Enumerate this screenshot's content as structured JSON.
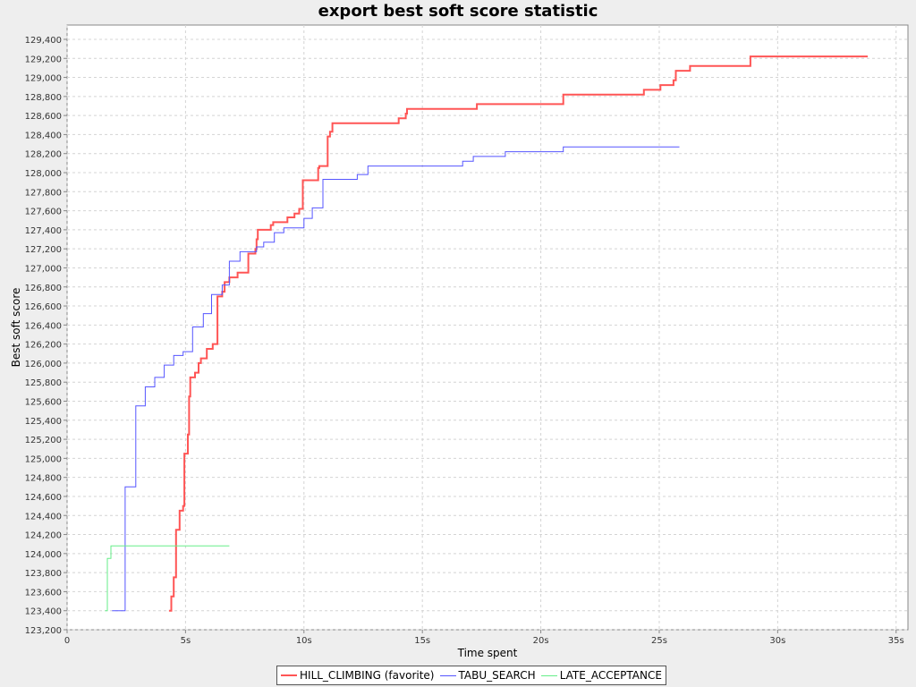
{
  "chart_data": {
    "type": "line",
    "title": "export best soft score statistic",
    "xlabel": "Time spent",
    "ylabel": "Best soft score",
    "xlim": [
      0,
      35.5
    ],
    "ylim": [
      123200,
      129550
    ],
    "x_ticks": [
      0,
      5,
      10,
      15,
      20,
      25,
      30,
      35
    ],
    "x_tick_labels": [
      "0",
      "5s",
      "10s",
      "15s",
      "20s",
      "25s",
      "30s",
      "35s"
    ],
    "y_ticks": [
      123200,
      123400,
      123600,
      123800,
      124000,
      124200,
      124400,
      124600,
      124800,
      125000,
      125200,
      125400,
      125600,
      125800,
      126000,
      126200,
      126400,
      126600,
      126800,
      127000,
      127200,
      127400,
      127600,
      127800,
      128000,
      128200,
      128400,
      128600,
      128800,
      129000,
      129200,
      129400
    ],
    "y_tick_labels": [
      "123,200",
      "123,400",
      "123,600",
      "123,800",
      "124,000",
      "124,200",
      "124,400",
      "124,600",
      "124,800",
      "125,000",
      "125,200",
      "125,400",
      "125,600",
      "125,800",
      "126,000",
      "126,200",
      "126,400",
      "126,600",
      "126,800",
      "127,000",
      "127,200",
      "127,400",
      "127,600",
      "127,800",
      "128,000",
      "128,200",
      "128,400",
      "128,600",
      "128,800",
      "129,000",
      "129,200",
      "129,400"
    ],
    "grid": true,
    "legend_position": "bottom",
    "series": [
      {
        "name": "HILL_CLIMBING (favorite)",
        "color": "#ff5555",
        "width": 2,
        "step": true,
        "points": [
          [
            4.3,
            123400
          ],
          [
            4.4,
            123550
          ],
          [
            4.5,
            123750
          ],
          [
            4.6,
            124250
          ],
          [
            4.75,
            124450
          ],
          [
            4.9,
            124500
          ],
          [
            4.95,
            125050
          ],
          [
            5.1,
            125250
          ],
          [
            5.15,
            125650
          ],
          [
            5.2,
            125850
          ],
          [
            5.4,
            125900
          ],
          [
            5.55,
            126000
          ],
          [
            5.65,
            126050
          ],
          [
            5.9,
            126150
          ],
          [
            6.15,
            126200
          ],
          [
            6.35,
            126700
          ],
          [
            6.55,
            126750
          ],
          [
            6.65,
            126850
          ],
          [
            6.85,
            126900
          ],
          [
            7.2,
            126950
          ],
          [
            7.65,
            127150
          ],
          [
            7.95,
            127200
          ],
          [
            8.0,
            127300
          ],
          [
            8.05,
            127400
          ],
          [
            8.6,
            127450
          ],
          [
            8.7,
            127480
          ],
          [
            9.3,
            127530
          ],
          [
            9.6,
            127570
          ],
          [
            9.8,
            127620
          ],
          [
            9.95,
            127920
          ],
          [
            10.6,
            128050
          ],
          [
            10.65,
            128070
          ],
          [
            11.0,
            128380
          ],
          [
            11.1,
            128430
          ],
          [
            11.2,
            128520
          ],
          [
            14.0,
            128570
          ],
          [
            14.3,
            128620
          ],
          [
            14.35,
            128670
          ],
          [
            17.3,
            128720
          ],
          [
            20.95,
            128820
          ],
          [
            24.35,
            128870
          ],
          [
            25.05,
            128920
          ],
          [
            25.6,
            128970
          ],
          [
            25.7,
            129070
          ],
          [
            26.3,
            129120
          ],
          [
            28.85,
            129220
          ],
          [
            33.8,
            129220
          ]
        ]
      },
      {
        "name": "TABU_SEARCH",
        "color": "#5555ff",
        "width": 1,
        "step": true,
        "points": [
          [
            1.9,
            123400
          ],
          [
            2.45,
            124700
          ],
          [
            2.9,
            125550
          ],
          [
            3.3,
            125750
          ],
          [
            3.7,
            125850
          ],
          [
            4.1,
            125980
          ],
          [
            4.5,
            126080
          ],
          [
            4.9,
            126120
          ],
          [
            5.3,
            126380
          ],
          [
            5.75,
            126520
          ],
          [
            6.1,
            126720
          ],
          [
            6.55,
            126820
          ],
          [
            6.85,
            127070
          ],
          [
            7.3,
            127170
          ],
          [
            8.0,
            127220
          ],
          [
            8.3,
            127270
          ],
          [
            8.75,
            127370
          ],
          [
            9.15,
            127420
          ],
          [
            10.0,
            127520
          ],
          [
            10.35,
            127630
          ],
          [
            10.8,
            127930
          ],
          [
            12.25,
            127980
          ],
          [
            12.7,
            128070
          ],
          [
            16.7,
            128120
          ],
          [
            17.15,
            128170
          ],
          [
            18.5,
            128220
          ],
          [
            20.95,
            128270
          ],
          [
            25.85,
            128270
          ]
        ]
      },
      {
        "name": "LATE_ACCEPTANCE",
        "color": "#66ee88",
        "width": 1,
        "step": true,
        "points": [
          [
            1.6,
            123400
          ],
          [
            1.7,
            123950
          ],
          [
            1.85,
            124080
          ],
          [
            6.85,
            124080
          ]
        ]
      }
    ]
  }
}
